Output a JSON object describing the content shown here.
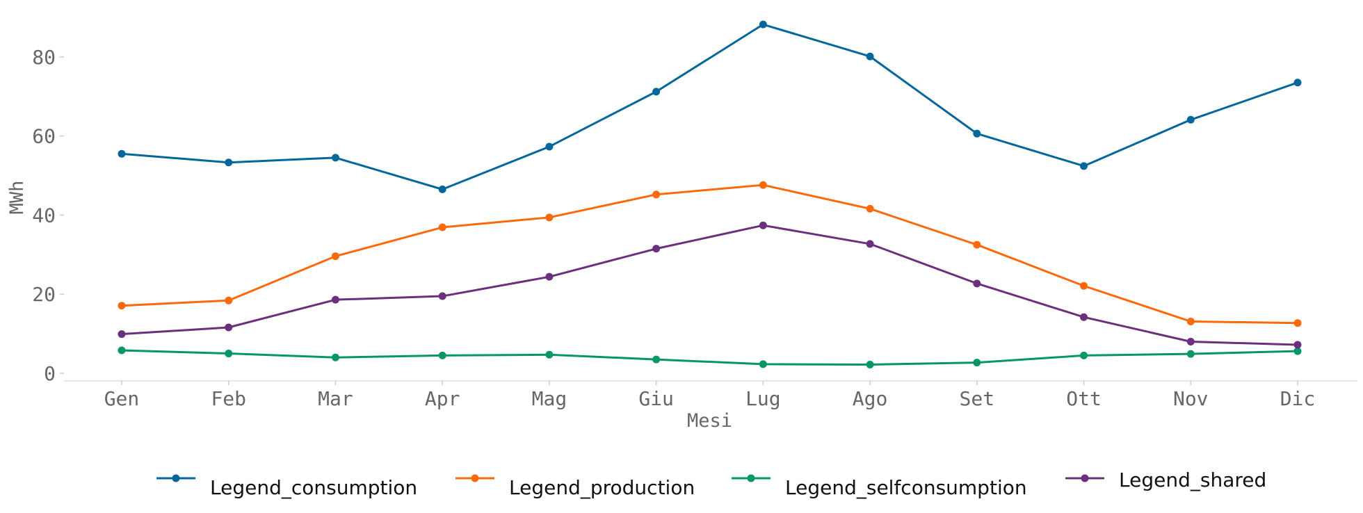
{
  "chart_data": {
    "type": "line",
    "title": "",
    "xlabel": "Mesi",
    "ylabel": "MWh",
    "categories": [
      "Gen",
      "Feb",
      "Mar",
      "Apr",
      "Mag",
      "Giu",
      "Lug",
      "Ago",
      "Set",
      "Ott",
      "Nov",
      "Dic"
    ],
    "ylim": [
      0,
      90
    ],
    "yticks": [
      0,
      20,
      40,
      60,
      80
    ],
    "grid": false,
    "legend_position": "bottom-center",
    "series": [
      {
        "name": "Legend_consumption",
        "color": "#04679b",
        "values": [
          55.5,
          53.3,
          54.5,
          46.5,
          57.3,
          71.2,
          88.2,
          80.1,
          60.6,
          52.4,
          64.1,
          73.5
        ]
      },
      {
        "name": "Legend_production",
        "color": "#fa6a0a",
        "values": [
          17.1,
          18.4,
          29.6,
          36.9,
          39.4,
          45.2,
          47.6,
          41.6,
          32.5,
          22.1,
          13.1,
          12.7
        ]
      },
      {
        "name": "Legend_selfconsumption",
        "color": "#069669",
        "values": [
          5.8,
          5.0,
          4.0,
          4.5,
          4.7,
          3.5,
          2.3,
          2.2,
          2.7,
          4.5,
          4.9,
          5.6
        ]
      },
      {
        "name": "Legend_shared",
        "color": "#6c2f7d",
        "values": [
          9.9,
          11.6,
          18.6,
          19.5,
          24.4,
          31.5,
          37.4,
          32.7,
          22.7,
          14.2,
          8.0,
          7.2
        ]
      }
    ]
  }
}
